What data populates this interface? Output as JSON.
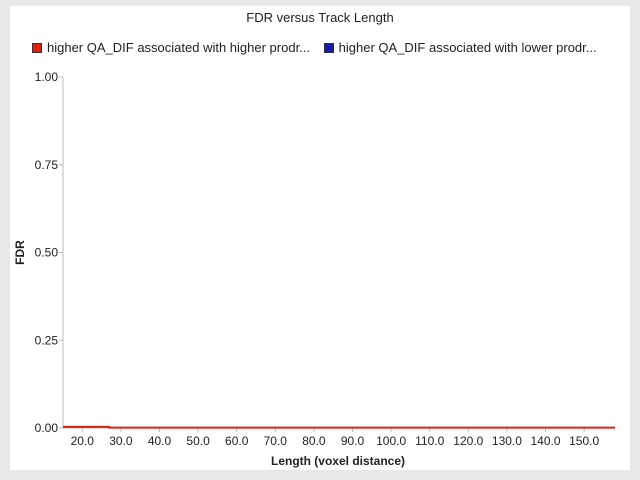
{
  "chart_data": {
    "type": "line",
    "title": "FDR versus Track Length",
    "xlabel": "Length (voxel distance)",
    "ylabel": "FDR",
    "xlim": [
      15,
      158
    ],
    "ylim": [
      0,
      1
    ],
    "x_ticks": [
      "20.0",
      "30.0",
      "40.0",
      "50.0",
      "60.0",
      "70.0",
      "80.0",
      "90.0",
      "100.0",
      "110.0",
      "120.0",
      "130.0",
      "140.0",
      "150.0"
    ],
    "y_ticks": [
      "0.00",
      "0.25",
      "0.50",
      "0.75",
      "1.00"
    ],
    "legend_position": "top",
    "grid": false,
    "series": [
      {
        "name": "higher QA_DIF associated with higher prodr...",
        "color": "#dd2211",
        "x": [
          15,
          27,
          27,
          158
        ],
        "y": [
          0.003,
          0.003,
          0.001,
          0.001
        ]
      },
      {
        "name": "higher QA_DIF associated with lower prodr...",
        "color": "#1a1aaa",
        "x": [],
        "y": []
      }
    ]
  }
}
